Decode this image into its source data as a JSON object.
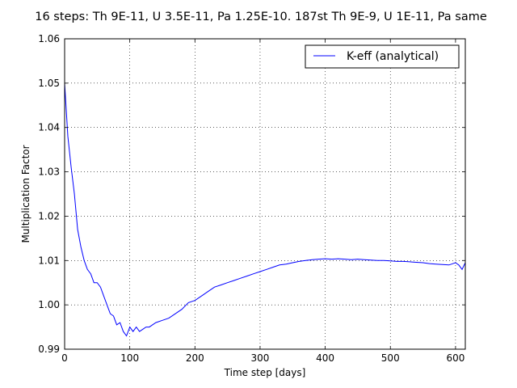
{
  "chart_data": {
    "type": "line",
    "title": "16 steps: Th 9E-11, U 3.5E-11, Pa 1.25E-10. 187st Th 9E-9, U 1E-11, Pa same",
    "xlabel": "Time step [days]",
    "ylabel": "Multiplication Factor",
    "xlim": [
      0,
      615
    ],
    "ylim": [
      0.99,
      1.06
    ],
    "x_ticks": [
      0,
      100,
      200,
      300,
      400,
      500,
      600
    ],
    "x_tick_labels": [
      "0",
      "100",
      "200",
      "300",
      "400",
      "500",
      "600"
    ],
    "y_ticks": [
      0.99,
      1.0,
      1.01,
      1.02,
      1.03,
      1.04,
      1.05,
      1.06
    ],
    "y_tick_labels": [
      "0.99",
      "1.00",
      "1.01",
      "1.02",
      "1.03",
      "1.04",
      "1.05",
      "1.06"
    ],
    "grid": true,
    "legend_position": "top-right",
    "series": [
      {
        "name": "K-eff (analytical)",
        "color": "#0000ff",
        "x": [
          0,
          5,
          10,
          15,
          20,
          25,
          30,
          35,
          40,
          45,
          50,
          55,
          60,
          65,
          70,
          75,
          80,
          85,
          90,
          95,
          100,
          105,
          110,
          115,
          120,
          125,
          130,
          140,
          150,
          160,
          170,
          180,
          190,
          200,
          210,
          220,
          230,
          240,
          250,
          260,
          270,
          280,
          290,
          300,
          310,
          320,
          330,
          340,
          350,
          360,
          370,
          380,
          390,
          400,
          410,
          420,
          430,
          440,
          450,
          460,
          470,
          480,
          490,
          500,
          510,
          520,
          530,
          540,
          550,
          560,
          570,
          580,
          590,
          600,
          605,
          610,
          615
        ],
        "y": [
          1.05,
          1.038,
          1.031,
          1.025,
          1.017,
          1.013,
          1.01,
          1.008,
          1.007,
          1.005,
          1.005,
          1.004,
          1.002,
          1.0,
          0.998,
          0.9975,
          0.9955,
          0.996,
          0.994,
          0.993,
          0.995,
          0.994,
          0.995,
          0.994,
          0.9945,
          0.995,
          0.995,
          0.996,
          0.9965,
          0.997,
          0.998,
          0.999,
          1.0005,
          1.001,
          1.002,
          1.003,
          1.004,
          1.0045,
          1.005,
          1.0055,
          1.006,
          1.0065,
          1.007,
          1.0075,
          1.008,
          1.0085,
          1.009,
          1.0092,
          1.0095,
          1.0098,
          1.01,
          1.0102,
          1.0103,
          1.0104,
          1.0103,
          1.0104,
          1.0103,
          1.0102,
          1.0103,
          1.0102,
          1.0101,
          1.01,
          1.01,
          1.0099,
          1.0098,
          1.0098,
          1.0097,
          1.0096,
          1.0095,
          1.0093,
          1.0092,
          1.0091,
          1.009,
          1.0095,
          1.009,
          1.008,
          1.0095
        ]
      }
    ]
  }
}
